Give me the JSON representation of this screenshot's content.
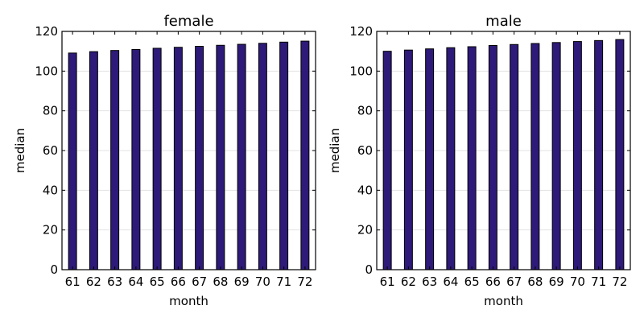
{
  "chart_data": [
    {
      "type": "bar",
      "title": "female",
      "xlabel": "month",
      "ylabel": "median",
      "categories": [
        "61",
        "62",
        "63",
        "64",
        "65",
        "66",
        "67",
        "68",
        "69",
        "70",
        "71",
        "72"
      ],
      "values": [
        109.1,
        109.8,
        110.4,
        110.9,
        111.5,
        112.0,
        112.5,
        113.0,
        113.5,
        114.0,
        114.6,
        115.1
      ],
      "ylim": [
        0,
        120
      ],
      "yticks": [
        "0",
        "20",
        "40",
        "60",
        "80",
        "100",
        "120"
      ],
      "grid": "y",
      "color": "#2e1a78"
    },
    {
      "type": "bar",
      "title": "male",
      "xlabel": "month",
      "ylabel": "median",
      "categories": [
        "61",
        "62",
        "63",
        "64",
        "65",
        "66",
        "67",
        "68",
        "69",
        "70",
        "71",
        "72"
      ],
      "values": [
        110.0,
        110.6,
        111.2,
        111.8,
        112.3,
        112.9,
        113.4,
        113.9,
        114.4,
        114.9,
        115.4,
        115.9
      ],
      "ylim": [
        0,
        120
      ],
      "yticks": [
        "0",
        "20",
        "40",
        "60",
        "80",
        "100",
        "120"
      ],
      "grid": "y",
      "color": "#2e1a78"
    }
  ]
}
